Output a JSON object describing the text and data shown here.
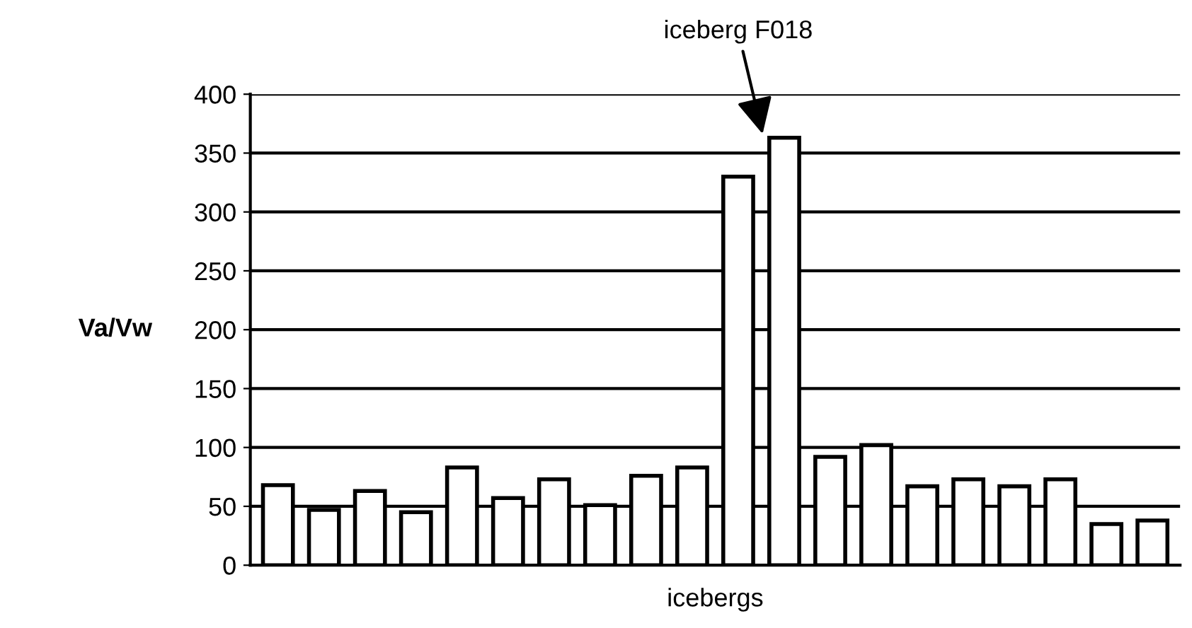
{
  "chart_data": {
    "type": "bar",
    "xlabel": "icebergs",
    "ylabel": "Va/Vw",
    "categories": [
      null,
      null,
      null,
      null,
      null,
      null,
      null,
      null,
      null,
      null,
      null,
      null,
      null,
      null,
      null,
      null,
      null,
      null,
      null,
      null
    ],
    "values": [
      68,
      47,
      63,
      45,
      83,
      57,
      73,
      51,
      76,
      83,
      330,
      363,
      92,
      102,
      67,
      73,
      67,
      73,
      35,
      38
    ],
    "color": "#ffffff",
    "ylim": [
      0,
      400
    ],
    "yticks": [
      0,
      50,
      100,
      150,
      200,
      250,
      300,
      350,
      400
    ],
    "grid": "y",
    "annotations": [
      "iceberg F018"
    ]
  }
}
